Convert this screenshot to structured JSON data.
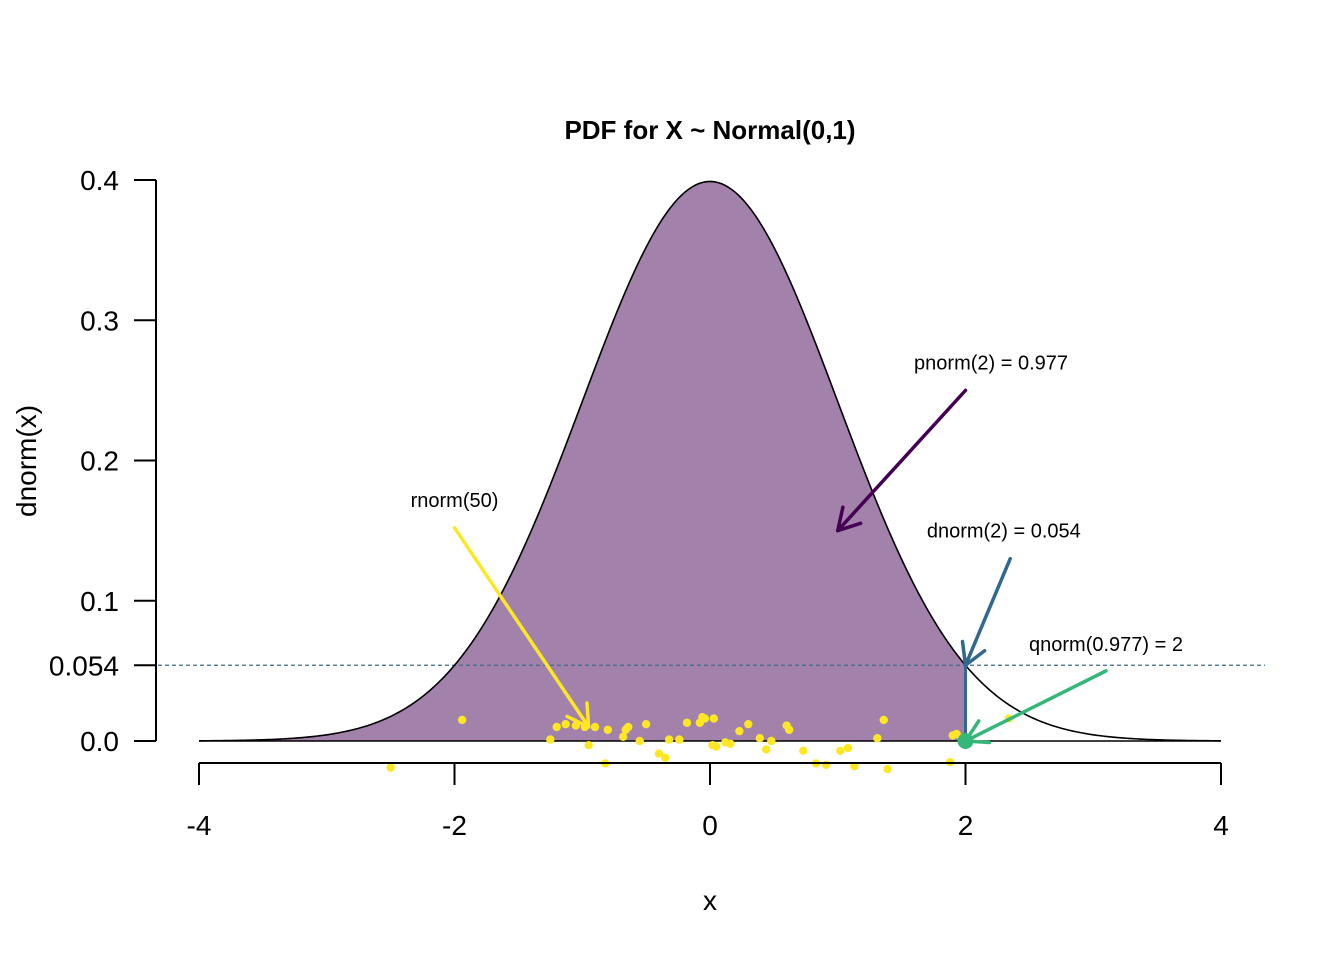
{
  "chart_data": {
    "type": "line",
    "title": "PDF for X ~ Normal(0,1)",
    "xlabel": "x",
    "ylabel": "dnorm(x)",
    "xlim": [
      -4,
      4
    ],
    "ylim": [
      0,
      0.4
    ],
    "x_ticks": [
      "-4",
      "-2",
      "0",
      "2",
      "4"
    ],
    "y_ticks": [
      {
        "value": 0.0,
        "label": "0.0"
      },
      {
        "value": 0.054,
        "label": "0.054"
      },
      {
        "value": 0.1,
        "label": "0.1"
      },
      {
        "value": 0.2,
        "label": "0.2"
      },
      {
        "value": 0.3,
        "label": "0.3"
      },
      {
        "value": 0.4,
        "label": "0.4"
      }
    ],
    "curve": {
      "distribution": "normal",
      "mean": 0,
      "sd": 1,
      "color": "#000000"
    },
    "shaded_region": {
      "from": -4,
      "to": 2,
      "color": "#a281aa"
    },
    "reference_line": {
      "y": 0.054,
      "color": "#3b6b8f",
      "style": "dashed"
    },
    "segment": {
      "x": 2,
      "y_from": 0.054,
      "y_to": 0,
      "color": "#31688e"
    },
    "highlight_point": {
      "x": 2,
      "y": 0,
      "color": "#35b779"
    },
    "annotations": [
      {
        "text": "pnorm(2) =  0.977",
        "x": 2.2,
        "y": 0.265,
        "arrow_from": [
          2.0,
          0.25
        ],
        "arrow_to": [
          1.0,
          0.15
        ],
        "color": "#440154"
      },
      {
        "text": "dnorm(2) = 0.054",
        "x": 2.3,
        "y": 0.145,
        "arrow_from": [
          2.35,
          0.13
        ],
        "arrow_to": [
          2.0,
          0.054
        ],
        "color": "#31688e"
      },
      {
        "text": "qnorm(0.977) = 2",
        "x": 3.1,
        "y": 0.064,
        "arrow_from": [
          3.1,
          0.05
        ],
        "arrow_to": [
          2.0,
          0.0
        ],
        "color": "#35b779"
      },
      {
        "text": "rnorm(50)",
        "x": -2.0,
        "y": 0.167,
        "arrow_from": [
          -2.0,
          0.152
        ],
        "arrow_to": [
          -0.95,
          0.01
        ],
        "color": "#fde725"
      }
    ],
    "samples": {
      "label": "rnorm(50)",
      "color": "#fde725",
      "x": [
        -2.5,
        -1.94,
        -1.25,
        -1.2,
        -1.13,
        -1.05,
        -0.98,
        -0.95,
        -0.82,
        -0.8,
        -0.68,
        -0.66,
        -0.64,
        -0.55,
        -0.5,
        -0.4,
        -0.35,
        -0.32,
        -0.24,
        -0.08,
        -0.06,
        -0.04,
        0.02,
        0.03,
        0.05,
        0.12,
        0.16,
        0.23,
        0.39,
        0.44,
        0.6,
        0.62,
        0.73,
        0.83,
        0.91,
        1.08,
        1.13,
        1.31,
        1.36,
        1.39,
        1.9,
        1.93,
        1.97,
        2.34,
        1.88,
        0.48,
        -0.18,
        -0.9,
        0.3,
        1.02
      ],
      "y": [
        -0.019,
        0.015,
        0.001,
        0.01,
        0.012,
        0.011,
        0.01,
        -0.003,
        -0.016,
        0.008,
        0.003,
        0.008,
        0.01,
        0.0,
        0.012,
        -0.009,
        -0.012,
        0.001,
        0.001,
        0.013,
        0.017,
        0.016,
        -0.003,
        0.016,
        -0.004,
        -0.001,
        -0.002,
        0.007,
        0.002,
        -0.006,
        0.011,
        0.008,
        -0.007,
        -0.016,
        -0.017,
        -0.005,
        -0.018,
        0.002,
        0.015,
        -0.02,
        0.004,
        0.005,
        0.002,
        0.016,
        -0.015,
        0.0,
        0.013,
        0.01,
        0.012,
        -0.007
      ]
    }
  }
}
